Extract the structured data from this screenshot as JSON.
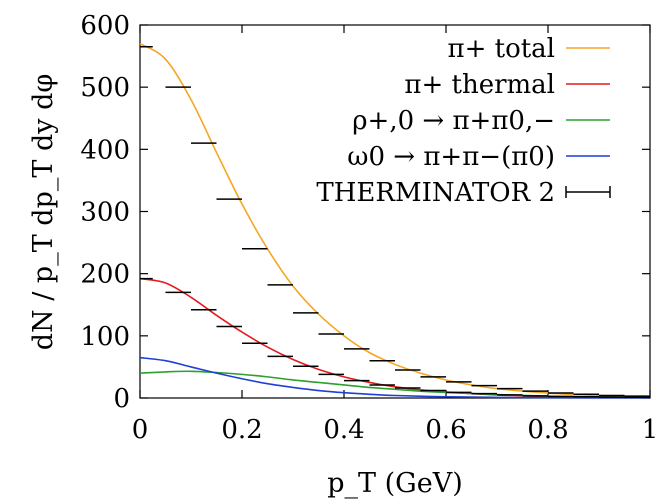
{
  "chart_data": {
    "type": "line",
    "title": "",
    "xlabel": "p_T (GeV)",
    "ylabel": "dN / p_T dp_T dy dφ",
    "xlim": [
      0,
      1
    ],
    "ylim": [
      0,
      600
    ],
    "x_ticks": [
      "0",
      "0.2",
      "0.4",
      "0.6",
      "0.8",
      "1"
    ],
    "y_ticks": [
      "0",
      "100",
      "200",
      "300",
      "400",
      "500",
      "600"
    ],
    "grid": false,
    "legend_position": "top-right",
    "series": [
      {
        "name": "π+ total",
        "color": "#f5a623",
        "style": "line",
        "x": [
          0,
          0.05,
          0.1,
          0.15,
          0.2,
          0.25,
          0.3,
          0.35,
          0.4,
          0.45,
          0.5,
          0.55,
          0.6,
          0.65,
          0.7,
          0.8,
          0.9,
          1.0
        ],
        "y": [
          570,
          545,
          480,
          395,
          312,
          240,
          180,
          135,
          100,
          73,
          54,
          40,
          29,
          21,
          15,
          8,
          4,
          2
        ]
      },
      {
        "name": "π+ thermal",
        "color": "#e41a1c",
        "style": "line",
        "x": [
          0,
          0.05,
          0.1,
          0.15,
          0.2,
          0.25,
          0.3,
          0.35,
          0.4,
          0.45,
          0.5,
          0.55,
          0.6,
          0.7,
          0.8,
          0.9,
          1.0
        ],
        "y": [
          192,
          185,
          162,
          133,
          106,
          82,
          62,
          46,
          34,
          25,
          18,
          13,
          9.5,
          5,
          2.5,
          1.2,
          0.6
        ]
      },
      {
        "name": "ρ+,0 → π+π0,−",
        "color": "#2ca02c",
        "style": "line",
        "x": [
          0,
          0.05,
          0.1,
          0.15,
          0.2,
          0.25,
          0.3,
          0.35,
          0.4,
          0.45,
          0.5,
          0.55,
          0.6,
          0.7,
          0.8,
          0.9,
          1.0
        ],
        "y": [
          40,
          42,
          43,
          41,
          38,
          34,
          29,
          25,
          21,
          17,
          14,
          11,
          9,
          5.5,
          3,
          1.6,
          0.8
        ]
      },
      {
        "name": "ω0 → π+π−(π0)",
        "color": "#1f3fd6",
        "style": "line",
        "x": [
          0,
          0.05,
          0.1,
          0.15,
          0.2,
          0.25,
          0.3,
          0.35,
          0.4,
          0.45,
          0.5,
          0.6,
          0.7,
          0.8,
          1.0
        ],
        "y": [
          65,
          60,
          50,
          40,
          31,
          23,
          17,
          12,
          8.5,
          6,
          4,
          2,
          1,
          0.5,
          0.2
        ]
      },
      {
        "name": "THERMINATOR 2",
        "color": "#000000",
        "style": "errorbar",
        "x": [
          0.0125,
          0.075,
          0.125,
          0.175,
          0.225,
          0.275,
          0.325,
          0.375,
          0.425,
          0.475,
          0.525,
          0.575,
          0.625,
          0.675,
          0.725,
          0.775,
          0.825,
          0.875,
          0.925,
          0.975
        ],
        "y": [
          565,
          500,
          410,
          320,
          240,
          182,
          137,
          103,
          79,
          60,
          45,
          34,
          26,
          20,
          15,
          11,
          8,
          6,
          4,
          3
        ],
        "xerr": [
          0.0125,
          0.025,
          0.025,
          0.025,
          0.025,
          0.025,
          0.025,
          0.025,
          0.025,
          0.025,
          0.025,
          0.025,
          0.025,
          0.025,
          0.025,
          0.025,
          0.025,
          0.025,
          0.025,
          0.025
        ]
      },
      {
        "name": "",
        "color": "#000000",
        "style": "errorbar",
        "x": [
          0.0125,
          0.075,
          0.125,
          0.175,
          0.225,
          0.275,
          0.325,
          0.375,
          0.425,
          0.475,
          0.525,
          0.575,
          0.625,
          0.675,
          0.725,
          0.775,
          0.825,
          0.875,
          0.925,
          0.975
        ],
        "y": [
          192,
          170,
          142,
          115,
          88,
          67,
          51,
          38,
          28,
          21,
          16,
          12,
          9,
          7,
          5,
          3.5,
          2.5,
          2,
          1.5,
          1
        ],
        "xerr": [
          0.0125,
          0.025,
          0.025,
          0.025,
          0.025,
          0.025,
          0.025,
          0.025,
          0.025,
          0.025,
          0.025,
          0.025,
          0.025,
          0.025,
          0.025,
          0.025,
          0.025,
          0.025,
          0.025,
          0.025
        ]
      }
    ]
  }
}
